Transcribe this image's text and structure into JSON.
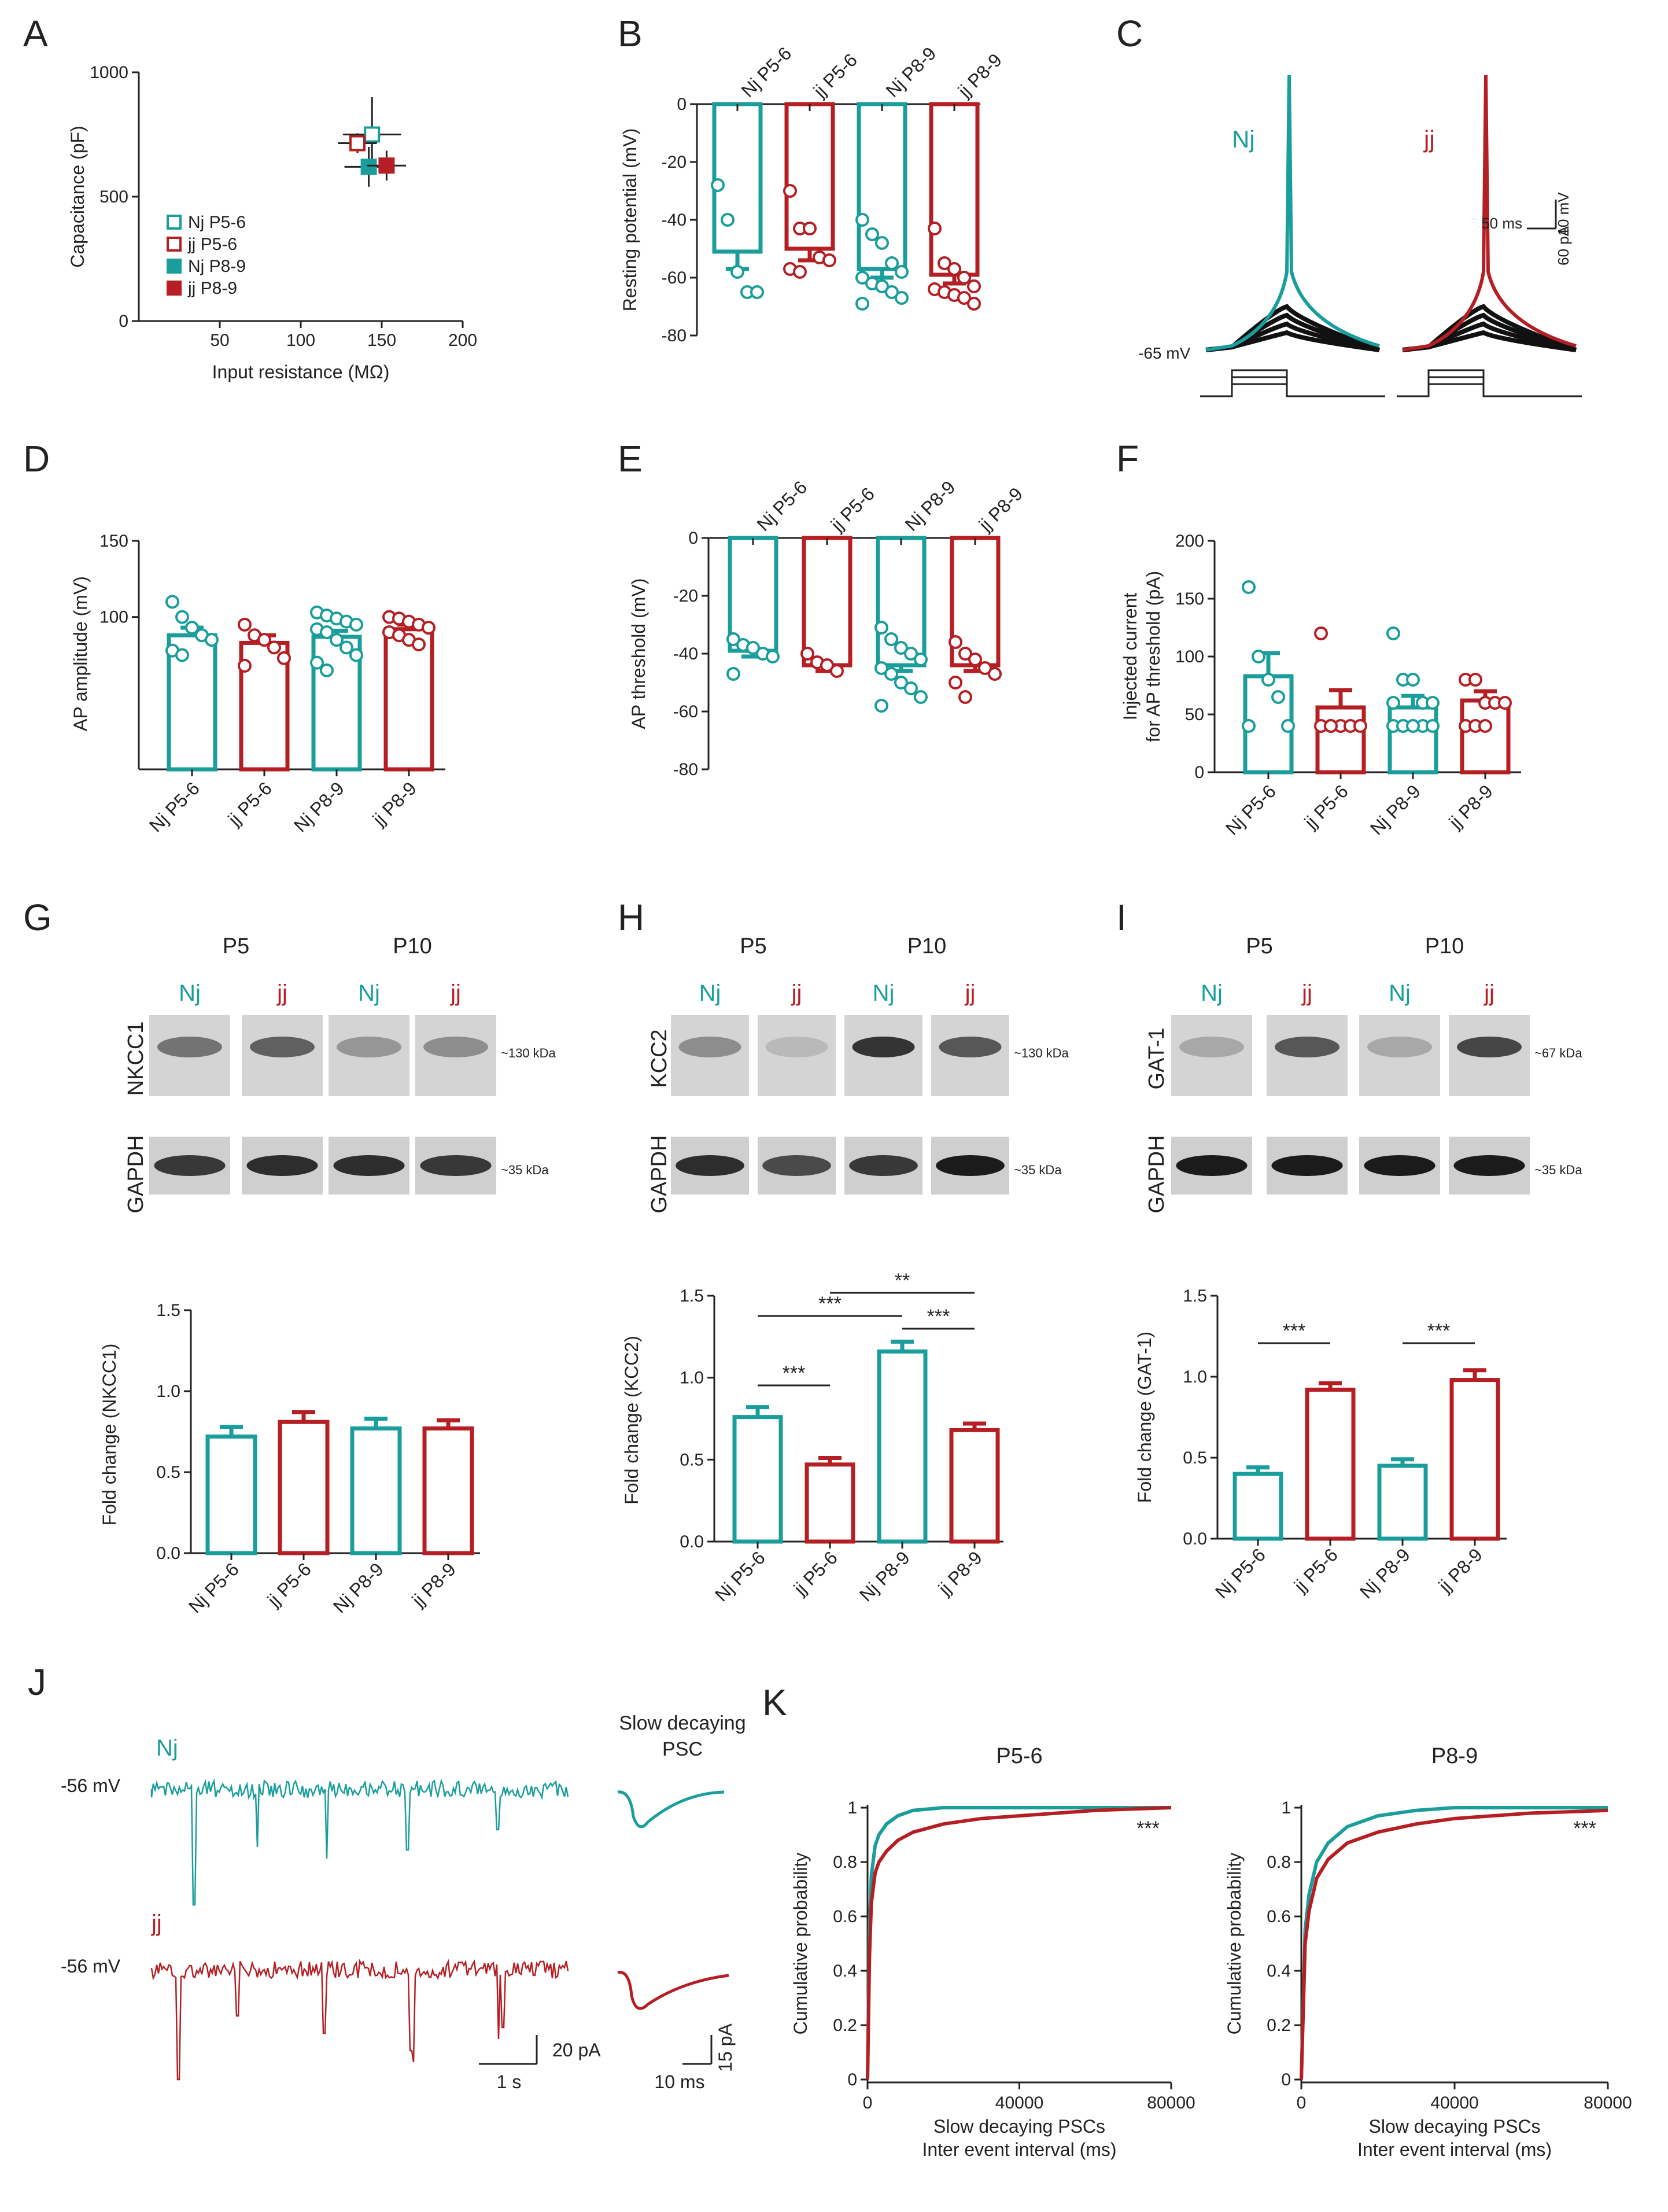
{
  "colors": {
    "nj": "#1a9e9b",
    "jj": "#b51f24",
    "axis": "#222222",
    "black": "#111111"
  },
  "panels": {
    "A": {
      "letter": "A",
      "xlabel": "Input resistance (MΩ)",
      "ylabel": "Capacitance (pF)",
      "xticks": [
        "50",
        "100",
        "150",
        "200"
      ],
      "yticks": [
        "0",
        "500",
        "1000"
      ],
      "legend": [
        "Nj P5-6",
        "jj P5-6",
        "Nj P8-9",
        "jj P8-9"
      ]
    },
    "B": {
      "letter": "B",
      "ylabel": "Resting potential (mV)",
      "yticks": [
        "0",
        "-20",
        "-40",
        "-60",
        "-80"
      ]
    },
    "C": {
      "letter": "C",
      "nj_label": "Nj",
      "jj_label": "jj",
      "vm_label": "-65 mV",
      "scale_v": "10 mV",
      "scale_t": "50 ms",
      "scale_i": "60 pA"
    },
    "D": {
      "letter": "D",
      "ylabel": "AP amplitude (mV)",
      "yticks": [
        "150",
        "100"
      ]
    },
    "E": {
      "letter": "E",
      "ylabel": "AP threshold (mV)",
      "yticks": [
        "0",
        "-20",
        "-40",
        "-60",
        "-80"
      ]
    },
    "F": {
      "letter": "F",
      "ylabel1": "Injected current",
      "ylabel2": "for AP threshold (pA)",
      "yticks": [
        "0",
        "50",
        "100",
        "150",
        "200"
      ]
    },
    "G": {
      "letter": "G",
      "protein": "NKCC1",
      "kda": "~130 kDa",
      "gapdh": "GAPDH",
      "gapdh_kda": "~35 kDa",
      "ylabel": "Fold change (NKCC1)",
      "yticks": [
        "0.0",
        "0.5",
        "1.0",
        "1.5"
      ]
    },
    "H": {
      "letter": "H",
      "protein": "KCC2",
      "kda": "~130 kDa",
      "gapdh": "GAPDH",
      "gapdh_kda": "~35 kDa",
      "ylabel": "Fold change (KCC2)",
      "yticks": [
        "0.0",
        "0.5",
        "1.0",
        "1.5"
      ]
    },
    "I": {
      "letter": "I",
      "protein": "GAT-1",
      "kda": "~67 kDa",
      "gapdh": "GAPDH",
      "gapdh_kda": "~35 kDa",
      "ylabel": "Fold change (GAT-1)",
      "yticks": [
        "0.0",
        "0.5",
        "1.0",
        "1.5"
      ]
    },
    "J": {
      "letter": "J",
      "nj_label": "Nj",
      "jj_label": "jj",
      "vm_nj": "-56 mV",
      "vm_jj": "-56 mV",
      "psc_title1": "Slow decaying",
      "psc_title2": "PSC",
      "scale_left_t": "1 s",
      "scale_left_i": "20 pA",
      "scale_right_t": "10 ms",
      "scale_right_i": "15 pA"
    },
    "K": {
      "letter": "K",
      "titles": [
        "P5-6",
        "P8-9"
      ],
      "ylabel": "Cumulative probability",
      "xlabel1": "Slow decaying PSCs",
      "xlabel2": "Inter event interval (ms)",
      "xticks": [
        "0",
        "40000",
        "80000"
      ],
      "yticks": [
        "0",
        "0.2",
        "0.4",
        "0.6",
        "0.8",
        "1"
      ],
      "sig": "***"
    }
  },
  "blot_headers": {
    "age1": "P5",
    "age2": "P10",
    "lanes": [
      "Nj",
      "jj",
      "Nj",
      "jj"
    ]
  },
  "groups": [
    "Nj P5-6",
    "jj P5-6",
    "Nj P8-9",
    "jj P8-9"
  ],
  "chart_data": [
    {
      "id": "A",
      "type": "scatter",
      "title": "",
      "xlabel": "Input resistance (MΩ)",
      "ylabel": "Capacitance (pF)",
      "xlim": [
        0,
        200
      ],
      "ylim": [
        0,
        1000
      ],
      "series": [
        {
          "name": "Nj P5-6",
          "x": 144,
          "y": 750,
          "xerr": 18,
          "yerr": 150,
          "filled": false
        },
        {
          "name": "jj P5-6",
          "x": 135,
          "y": 715,
          "xerr": 12,
          "yerr": 40,
          "filled": false
        },
        {
          "name": "Nj P8-9",
          "x": 142,
          "y": 620,
          "xerr": 15,
          "yerr": 80,
          "filled": true
        },
        {
          "name": "jj P8-9",
          "x": 153,
          "y": 625,
          "xerr": 12,
          "yerr": 60,
          "filled": true
        }
      ]
    },
    {
      "id": "B",
      "type": "bar",
      "title": "",
      "ylabel": "Resting potential (mV)",
      "ylim": [
        -80,
        0
      ],
      "categories": [
        "Nj P5-6",
        "jj P5-6",
        "Nj P8-9",
        "jj P8-9"
      ],
      "values": [
        -51,
        -50,
        -57,
        -59
      ],
      "sem": [
        6,
        4,
        3,
        3
      ],
      "points": [
        [
          -28,
          -40,
          -58,
          -65,
          -65
        ],
        [
          -30,
          -43,
          -43,
          -53,
          -54,
          -57,
          -58
        ],
        [
          -40,
          -45,
          -48,
          -55,
          -58,
          -60,
          -62,
          -63,
          -65,
          -67,
          -69
        ],
        [
          -43,
          -55,
          -57,
          -60,
          -63,
          -64,
          -65,
          -66,
          -67,
          -69
        ]
      ]
    },
    {
      "id": "D",
      "type": "bar",
      "title": "",
      "ylabel": "AP amplitude (mV)",
      "ylim": [
        0,
        150
      ],
      "categories": [
        "Nj P5-6",
        "jj P5-6",
        "Nj P8-9",
        "jj P8-9"
      ],
      "values": [
        88,
        83,
        87,
        92
      ],
      "sem": [
        5,
        5,
        4,
        3
      ],
      "points": [
        [
          110,
          100,
          93,
          88,
          85,
          78,
          75
        ],
        [
          95,
          88,
          85,
          80,
          73,
          68
        ],
        [
          103,
          101,
          99,
          97,
          95,
          92,
          90,
          85,
          80,
          75,
          70,
          65
        ],
        [
          100,
          99,
          97,
          95,
          93,
          90,
          88,
          85,
          82
        ]
      ]
    },
    {
      "id": "E",
      "type": "bar",
      "title": "",
      "ylabel": "AP threshold (mV)",
      "ylim": [
        -80,
        0
      ],
      "categories": [
        "Nj P5-6",
        "jj P5-6",
        "Nj P8-9",
        "jj P8-9"
      ],
      "values": [
        -39,
        -44,
        -44,
        -44
      ],
      "sem": [
        2,
        2,
        2,
        2
      ],
      "points": [
        [
          -35,
          -37,
          -38,
          -40,
          -41,
          -47
        ],
        [
          -40,
          -43,
          -44,
          -46
        ],
        [
          -31,
          -35,
          -38,
          -40,
          -42,
          -45,
          -47,
          -50,
          -52,
          -55,
          -58
        ],
        [
          -36,
          -40,
          -42,
          -45,
          -47,
          -50,
          -55
        ]
      ]
    },
    {
      "id": "F",
      "type": "bar",
      "title": "",
      "ylabel": "Injected current for AP threshold (pA)",
      "ylim": [
        0,
        200
      ],
      "categories": [
        "Nj P5-6",
        "jj P5-6",
        "Nj P8-9",
        "jj P8-9"
      ],
      "values": [
        83,
        56,
        56,
        62
      ],
      "sem": [
        20,
        15,
        10,
        8
      ],
      "points": [
        [
          160,
          100,
          80,
          65,
          40,
          40
        ],
        [
          120,
          40,
          40,
          40,
          40,
          40,
          40
        ],
        [
          120,
          80,
          80,
          60,
          60,
          60,
          40,
          40,
          40,
          40,
          40,
          40,
          40
        ],
        [
          80,
          80,
          60,
          60,
          60,
          40,
          40,
          40
        ]
      ]
    },
    {
      "id": "G",
      "type": "bar",
      "title": "",
      "ylabel": "Fold change (NKCC1)",
      "ylim": [
        0,
        1.5
      ],
      "categories": [
        "Nj P5-6",
        "jj P5-6",
        "Nj P8-9",
        "jj P8-9"
      ],
      "values": [
        0.72,
        0.81,
        0.77,
        0.77
      ],
      "sem": [
        0.06,
        0.06,
        0.06,
        0.05
      ]
    },
    {
      "id": "H",
      "type": "bar",
      "title": "",
      "ylabel": "Fold change (KCC2)",
      "ylim": [
        0,
        1.5
      ],
      "categories": [
        "Nj P5-6",
        "jj P5-6",
        "Nj P8-9",
        "jj P8-9"
      ],
      "values": [
        0.76,
        0.47,
        1.16,
        0.68
      ],
      "sem": [
        0.06,
        0.04,
        0.06,
        0.04
      ],
      "significance": [
        {
          "pair": [
            0,
            1
          ],
          "label": "***"
        },
        {
          "pair": [
            0,
            2
          ],
          "label": "***"
        },
        {
          "pair": [
            1,
            3
          ],
          "label": "**"
        },
        {
          "pair": [
            2,
            3
          ],
          "label": "***"
        }
      ]
    },
    {
      "id": "I",
      "type": "bar",
      "title": "",
      "ylabel": "Fold change (GAT-1)",
      "ylim": [
        0,
        1.5
      ],
      "categories": [
        "Nj P5-6",
        "jj P5-6",
        "Nj P8-9",
        "jj P8-9"
      ],
      "values": [
        0.4,
        0.92,
        0.45,
        0.98
      ],
      "sem": [
        0.04,
        0.04,
        0.04,
        0.06
      ],
      "significance": [
        {
          "pair": [
            0,
            1
          ],
          "label": "***"
        },
        {
          "pair": [
            2,
            3
          ],
          "label": "***"
        }
      ]
    },
    {
      "id": "K1",
      "type": "line",
      "title": "P5-6",
      "xlabel": "Slow decaying PSCs Inter event interval (ms)",
      "ylabel": "Cumulative probability",
      "xlim": [
        0,
        80000
      ],
      "ylim": [
        0,
        1
      ],
      "series": [
        {
          "name": "Nj",
          "x": [
            0,
            500,
            1000,
            2000,
            3000,
            5000,
            8000,
            12000,
            20000,
            40000,
            80000
          ],
          "values": [
            0,
            0.55,
            0.75,
            0.86,
            0.9,
            0.94,
            0.97,
            0.99,
            1.0,
            1.0,
            1.0
          ]
        },
        {
          "name": "jj",
          "x": [
            0,
            500,
            1000,
            2000,
            3000,
            5000,
            8000,
            12000,
            20000,
            30000,
            40000,
            60000,
            80000
          ],
          "values": [
            0,
            0.45,
            0.65,
            0.76,
            0.8,
            0.84,
            0.88,
            0.91,
            0.94,
            0.96,
            0.97,
            0.99,
            1.0
          ]
        }
      ]
    },
    {
      "id": "K2",
      "type": "line",
      "title": "P8-9",
      "xlabel": "Slow decaying PSCs Inter event interval (ms)",
      "ylabel": "Cumulative probability",
      "xlim": [
        0,
        80000
      ],
      "ylim": [
        0,
        1
      ],
      "series": [
        {
          "name": "Nj",
          "x": [
            0,
            1000,
            2000,
            4000,
            7000,
            12000,
            20000,
            30000,
            40000,
            60000,
            80000
          ],
          "values": [
            0,
            0.55,
            0.68,
            0.8,
            0.87,
            0.93,
            0.97,
            0.99,
            1.0,
            1.0,
            1.0
          ]
        },
        {
          "name": "jj",
          "x": [
            0,
            1000,
            2000,
            4000,
            7000,
            12000,
            20000,
            30000,
            40000,
            60000,
            80000
          ],
          "values": [
            0,
            0.5,
            0.62,
            0.74,
            0.81,
            0.87,
            0.91,
            0.94,
            0.96,
            0.98,
            0.99
          ]
        }
      ]
    }
  ]
}
